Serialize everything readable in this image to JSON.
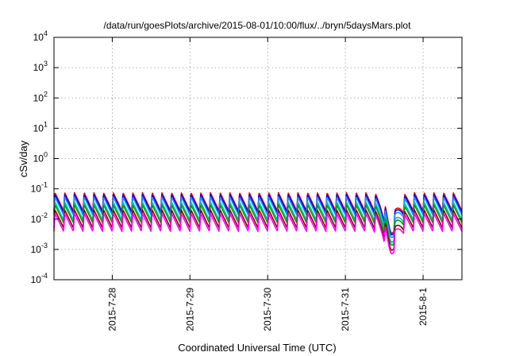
{
  "chart_data": {
    "type": "line",
    "title": "/data/run/goesPlots/archive/2015-08-01/10:00/flux/../bryn/5daysMars.plot",
    "xlabel": "Coordinated Universal Time (UTC)",
    "ylabel": "cSv/day",
    "x_range": [
      "2015-07-27T06:00",
      "2015-08-01T12:00"
    ],
    "y_range": [
      0.0001,
      10000
    ],
    "y_scale": "log",
    "grid": true,
    "legend": "none",
    "x_ticks": [
      {
        "at": "2015-07-28T00:00",
        "label": "2015-7-28"
      },
      {
        "at": "2015-07-29T00:00",
        "label": "2015-7-29"
      },
      {
        "at": "2015-07-30T00:00",
        "label": "2015-7-30"
      },
      {
        "at": "2015-07-31T00:00",
        "label": "2015-7-31"
      },
      {
        "at": "2015-08-01T00:00",
        "label": "2015-8-1"
      }
    ],
    "y_ticks": [
      {
        "value": 0.0001,
        "base": "10",
        "exp": "-4"
      },
      {
        "value": 0.001,
        "base": "10",
        "exp": "-3"
      },
      {
        "value": 0.01,
        "base": "10",
        "exp": "-2"
      },
      {
        "value": 0.1,
        "base": "10",
        "exp": "-1"
      },
      {
        "value": 1,
        "base": "10",
        "exp": "0"
      },
      {
        "value": 10,
        "base": "10",
        "exp": "1"
      },
      {
        "value": 100,
        "base": "10",
        "exp": "2"
      },
      {
        "value": 1000,
        "base": "10",
        "exp": "3"
      },
      {
        "value": 10000,
        "base": "10",
        "exp": "4"
      }
    ],
    "series_profile": {
      "period_hours": 3,
      "peak_value": 0.06,
      "trough_value": 0.015,
      "dip_center": "2015-07-31T14:00",
      "dip_hours": 3,
      "dip_factor": 0.12
    },
    "series": [
      {
        "color": "#ff0000",
        "scale": 1.25
      },
      {
        "color": "#0000ff",
        "scale": 1.1
      },
      {
        "color": "#1e90ff",
        "scale": 0.9
      },
      {
        "color": "#00bfbf",
        "scale": 0.62
      },
      {
        "color": "#00a000",
        "scale": 0.5
      },
      {
        "color": "#8b0000",
        "scale": 0.34
      },
      {
        "color": "#ff00ff",
        "scale": 0.26
      }
    ]
  }
}
